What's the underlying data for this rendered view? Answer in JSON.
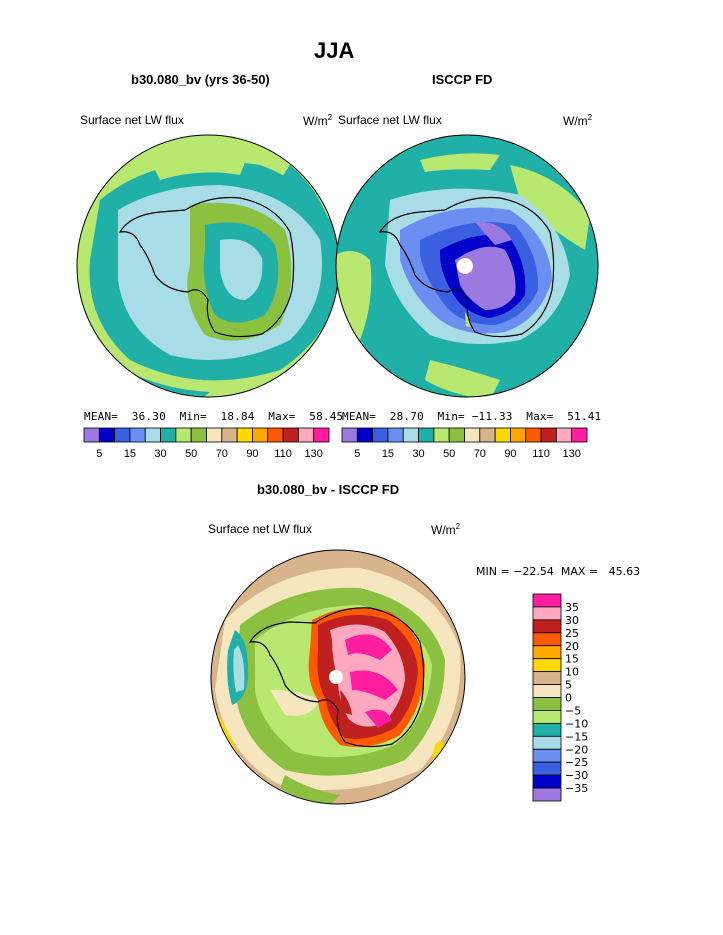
{
  "figure_title": "JJA",
  "panels": [
    {
      "title": "b30.080_bv (yrs 36-50)",
      "left_label": "Surface net LW flux",
      "units": "W/m",
      "units_sup": "2",
      "mean_label": "MEAN=",
      "mean_value": "36.30",
      "min_label": "Min=",
      "min_value": "18.84",
      "max_label": "Max=",
      "max_value": "58.45"
    },
    {
      "title": "ISCCP FD",
      "left_label": "Surface net LW flux",
      "units": "W/m",
      "units_sup": "2",
      "mean_label": "MEAN=",
      "mean_value": "28.70",
      "min_label": "Min=",
      "min_value": "−11.33",
      "max_label": "Max=",
      "max_value": "51.41"
    },
    {
      "title": "b30.080_bv - ISCCP FD",
      "left_label": "Surface net LW flux",
      "units": "W/m",
      "units_sup": "2",
      "minmax_text": "MIN = −22.54  MAX =   45.63"
    }
  ],
  "chart_data": [
    {
      "type": "heatmap",
      "title": "b30.080_bv (yrs 36-50)",
      "projection": "south polar stereographic",
      "colorbar": {
        "orientation": "horizontal",
        "tick_labels": [
          "5",
          "15",
          "30",
          "50",
          "70",
          "90",
          "110",
          "130"
        ],
        "colors": [
          "#9b79e0",
          "#0000c8",
          "#3a5fe0",
          "#6a8ff0",
          "#a8dde8",
          "#20b0a8",
          "#b8e870",
          "#8cc040",
          "#f5e6c0",
          "#d8b48c",
          "#ffd800",
          "#ffa800",
          "#ff5a00",
          "#c02020",
          "#ffa8c0",
          "#ff1ea0"
        ]
      },
      "stats": {
        "mean": 36.3,
        "min": 18.84,
        "max": 58.45
      }
    },
    {
      "type": "heatmap",
      "title": "ISCCP FD",
      "projection": "south polar stereographic",
      "colorbar": {
        "orientation": "horizontal",
        "tick_labels": [
          "5",
          "15",
          "30",
          "50",
          "70",
          "90",
          "110",
          "130"
        ],
        "colors": [
          "#9b79e0",
          "#0000c8",
          "#3a5fe0",
          "#6a8ff0",
          "#a8dde8",
          "#20b0a8",
          "#b8e870",
          "#8cc040",
          "#f5e6c0",
          "#d8b48c",
          "#ffd800",
          "#ffa800",
          "#ff5a00",
          "#c02020",
          "#ffa8c0",
          "#ff1ea0"
        ]
      },
      "stats": {
        "mean": 28.7,
        "min": -11.33,
        "max": 51.41
      }
    },
    {
      "type": "heatmap",
      "title": "b30.080_bv - ISCCP FD",
      "projection": "south polar stereographic",
      "colorbar": {
        "orientation": "vertical",
        "tick_labels": [
          "35",
          "30",
          "25",
          "20",
          "15",
          "10",
          "5",
          "0",
          "−5",
          "−10",
          "−15",
          "−20",
          "−25",
          "−30",
          "−35"
        ],
        "colors": [
          "#ff1ea0",
          "#ffa8c0",
          "#c02020",
          "#ff5a00",
          "#ffa800",
          "#ffd800",
          "#d8b48c",
          "#f5e6c0",
          "#8cc040",
          "#b8e870",
          "#20b0a8",
          "#a8dde8",
          "#6a8ff0",
          "#3a5fe0",
          "#0000c8",
          "#9b79e0"
        ]
      },
      "stats": {
        "min": -22.54,
        "max": 45.63
      }
    }
  ]
}
